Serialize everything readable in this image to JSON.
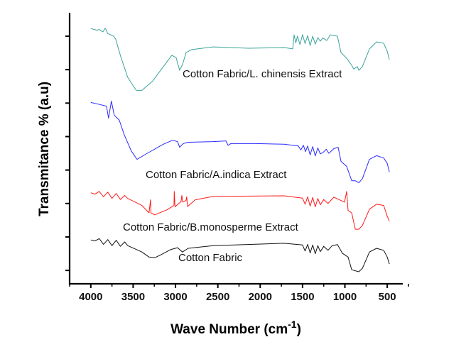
{
  "chart_data": {
    "type": "line",
    "title": "",
    "xlabel": "Wave Number (cm",
    "xlabel_superscript": "-1",
    "xlabel_close": ")",
    "ylabel": "Transmitance  % (a.u)",
    "xlim": [
      4250,
      325
    ],
    "ylim": [
      -0.4,
      7.7
    ],
    "x_ticks": [
      4000,
      3500,
      3000,
      2500,
      2000,
      1500,
      1000,
      500
    ],
    "y_ticks_unlabeled": [
      0,
      1,
      2,
      3,
      4,
      5,
      6,
      7
    ],
    "grid": false,
    "legend": "none (inline labels)",
    "series": [
      {
        "name": "Cotton Fabric/L. chinensis Extract",
        "color": "#3aa39a",
        "points": [
          [
            4000,
            7.23
          ],
          [
            3930,
            7.18
          ],
          [
            3900,
            7.2
          ],
          [
            3857,
            7.13
          ],
          [
            3830,
            7.24
          ],
          [
            3800,
            7.08
          ],
          [
            3731,
            7.0
          ],
          [
            3706,
            6.91
          ],
          [
            3648,
            6.4
          ],
          [
            3564,
            5.77
          ],
          [
            3463,
            5.38
          ],
          [
            3396,
            5.38
          ],
          [
            3270,
            5.66
          ],
          [
            3144,
            6.09
          ],
          [
            3043,
            6.43
          ],
          [
            2993,
            6.36
          ],
          [
            2951,
            5.98
          ],
          [
            2917,
            6.15
          ],
          [
            2875,
            6.51
          ],
          [
            2808,
            6.6
          ],
          [
            2556,
            6.68
          ],
          [
            2137,
            6.64
          ],
          [
            1717,
            6.66
          ],
          [
            1616,
            6.62
          ],
          [
            1600,
            7.04
          ],
          [
            1580,
            6.8
          ],
          [
            1560,
            7.0
          ],
          [
            1530,
            6.75
          ],
          [
            1500,
            7.05
          ],
          [
            1470,
            6.78
          ],
          [
            1440,
            7.02
          ],
          [
            1410,
            6.72
          ],
          [
            1380,
            7.0
          ],
          [
            1350,
            6.76
          ],
          [
            1320,
            6.96
          ],
          [
            1290,
            6.85
          ],
          [
            1260,
            6.95
          ],
          [
            1214,
            6.87
          ],
          [
            1172,
            7.04
          ],
          [
            1088,
            7.0
          ],
          [
            1046,
            6.51
          ],
          [
            979,
            6.34
          ],
          [
            920,
            6.13
          ],
          [
            895,
            6.02
          ],
          [
            853,
            6.09
          ],
          [
            836,
            5.98
          ],
          [
            794,
            6.09
          ],
          [
            710,
            6.62
          ],
          [
            626,
            6.83
          ],
          [
            542,
            6.79
          ],
          [
            500,
            6.55
          ],
          [
            475,
            6.3
          ]
        ]
      },
      {
        "name": "Cotton Fabric/A.indica Extract",
        "color": "#2b2bff",
        "points": [
          [
            4000,
            5.02
          ],
          [
            3899,
            4.96
          ],
          [
            3815,
            4.91
          ],
          [
            3790,
            4.55
          ],
          [
            3757,
            5.06
          ],
          [
            3723,
            4.64
          ],
          [
            3664,
            4.49
          ],
          [
            3606,
            4.06
          ],
          [
            3522,
            3.57
          ],
          [
            3454,
            3.32
          ],
          [
            3354,
            3.47
          ],
          [
            3144,
            3.77
          ],
          [
            3035,
            3.89
          ],
          [
            2976,
            3.85
          ],
          [
            2951,
            3.68
          ],
          [
            2909,
            3.79
          ],
          [
            2850,
            3.83
          ],
          [
            2556,
            3.85
          ],
          [
            2405,
            3.87
          ],
          [
            2380,
            3.74
          ],
          [
            2347,
            3.79
          ],
          [
            2053,
            3.79
          ],
          [
            1717,
            3.77
          ],
          [
            1550,
            3.72
          ],
          [
            1520,
            3.6
          ],
          [
            1490,
            3.74
          ],
          [
            1465,
            3.55
          ],
          [
            1440,
            3.72
          ],
          [
            1410,
            3.45
          ],
          [
            1380,
            3.7
          ],
          [
            1350,
            3.42
          ],
          [
            1320,
            3.66
          ],
          [
            1290,
            3.48
          ],
          [
            1256,
            3.53
          ],
          [
            1220,
            3.62
          ],
          [
            1190,
            3.5
          ],
          [
            1130,
            3.64
          ],
          [
            1080,
            3.68
          ],
          [
            1046,
            3.26
          ],
          [
            979,
            3.11
          ],
          [
            920,
            2.68
          ],
          [
            878,
            2.68
          ],
          [
            836,
            2.62
          ],
          [
            794,
            2.74
          ],
          [
            710,
            3.32
          ],
          [
            626,
            3.43
          ],
          [
            542,
            3.36
          ],
          [
            500,
            3.2
          ],
          [
            475,
            2.94
          ]
        ]
      },
      {
        "name": "Cotton Fabric/B.monosperme Extract",
        "color": "#ff1a1a",
        "points": [
          [
            4000,
            2.32
          ],
          [
            3950,
            2.28
          ],
          [
            3900,
            2.36
          ],
          [
            3850,
            2.2
          ],
          [
            3800,
            2.34
          ],
          [
            3750,
            2.15
          ],
          [
            3700,
            2.3
          ],
          [
            3650,
            2.12
          ],
          [
            3600,
            2.24
          ],
          [
            3564,
            2.15
          ],
          [
            3396,
            1.94
          ],
          [
            3312,
            1.72
          ],
          [
            3295,
            2.11
          ],
          [
            3290,
            1.72
          ],
          [
            3245,
            1.66
          ],
          [
            3102,
            1.81
          ],
          [
            3018,
            1.94
          ],
          [
            3015,
            2.36
          ],
          [
            3005,
            1.9
          ],
          [
            2934,
            2.06
          ],
          [
            2925,
            2.24
          ],
          [
            2915,
            2.04
          ],
          [
            2875,
            2.09
          ],
          [
            2868,
            2.2
          ],
          [
            2858,
            1.91
          ],
          [
            2766,
            2.11
          ],
          [
            2556,
            2.21
          ],
          [
            1717,
            2.23
          ],
          [
            1500,
            2.16
          ],
          [
            1470,
            1.98
          ],
          [
            1440,
            2.2
          ],
          [
            1410,
            1.92
          ],
          [
            1380,
            2.18
          ],
          [
            1350,
            1.9
          ],
          [
            1320,
            2.15
          ],
          [
            1290,
            1.96
          ],
          [
            1250,
            2.12
          ],
          [
            1200,
            2.0
          ],
          [
            1130,
            2.19
          ],
          [
            1004,
            2.04
          ],
          [
            979,
            2.36
          ],
          [
            962,
            1.79
          ],
          [
            920,
            1.72
          ],
          [
            878,
            1.23
          ],
          [
            836,
            1.23
          ],
          [
            794,
            1.34
          ],
          [
            710,
            1.83
          ],
          [
            626,
            1.98
          ],
          [
            542,
            1.94
          ],
          [
            500,
            1.62
          ],
          [
            475,
            1.47
          ]
        ]
      },
      {
        "name": "Cotton Fabric",
        "color": "#111111",
        "points": [
          [
            4000,
            0.91
          ],
          [
            3950,
            0.88
          ],
          [
            3900,
            0.95
          ],
          [
            3850,
            0.78
          ],
          [
            3800,
            0.92
          ],
          [
            3750,
            0.74
          ],
          [
            3700,
            0.9
          ],
          [
            3650,
            0.72
          ],
          [
            3600,
            0.85
          ],
          [
            3564,
            0.74
          ],
          [
            3396,
            0.55
          ],
          [
            3312,
            0.4
          ],
          [
            3245,
            0.38
          ],
          [
            3186,
            0.45
          ],
          [
            3060,
            0.62
          ],
          [
            2976,
            0.68
          ],
          [
            2917,
            0.55
          ],
          [
            2850,
            0.66
          ],
          [
            2556,
            0.74
          ],
          [
            1717,
            0.81
          ],
          [
            1500,
            0.76
          ],
          [
            1470,
            0.58
          ],
          [
            1440,
            0.78
          ],
          [
            1410,
            0.52
          ],
          [
            1380,
            0.76
          ],
          [
            1350,
            0.5
          ],
          [
            1320,
            0.74
          ],
          [
            1290,
            0.56
          ],
          [
            1250,
            0.72
          ],
          [
            1200,
            0.6
          ],
          [
            1150,
            0.74
          ],
          [
            1088,
            0.77
          ],
          [
            1029,
            0.51
          ],
          [
            962,
            0.4
          ],
          [
            920,
            0.02
          ],
          [
            836,
            -0.04
          ],
          [
            794,
            0.06
          ],
          [
            710,
            0.55
          ],
          [
            626,
            0.66
          ],
          [
            542,
            0.6
          ],
          [
            500,
            0.4
          ],
          [
            475,
            0.19
          ]
        ]
      }
    ]
  }
}
